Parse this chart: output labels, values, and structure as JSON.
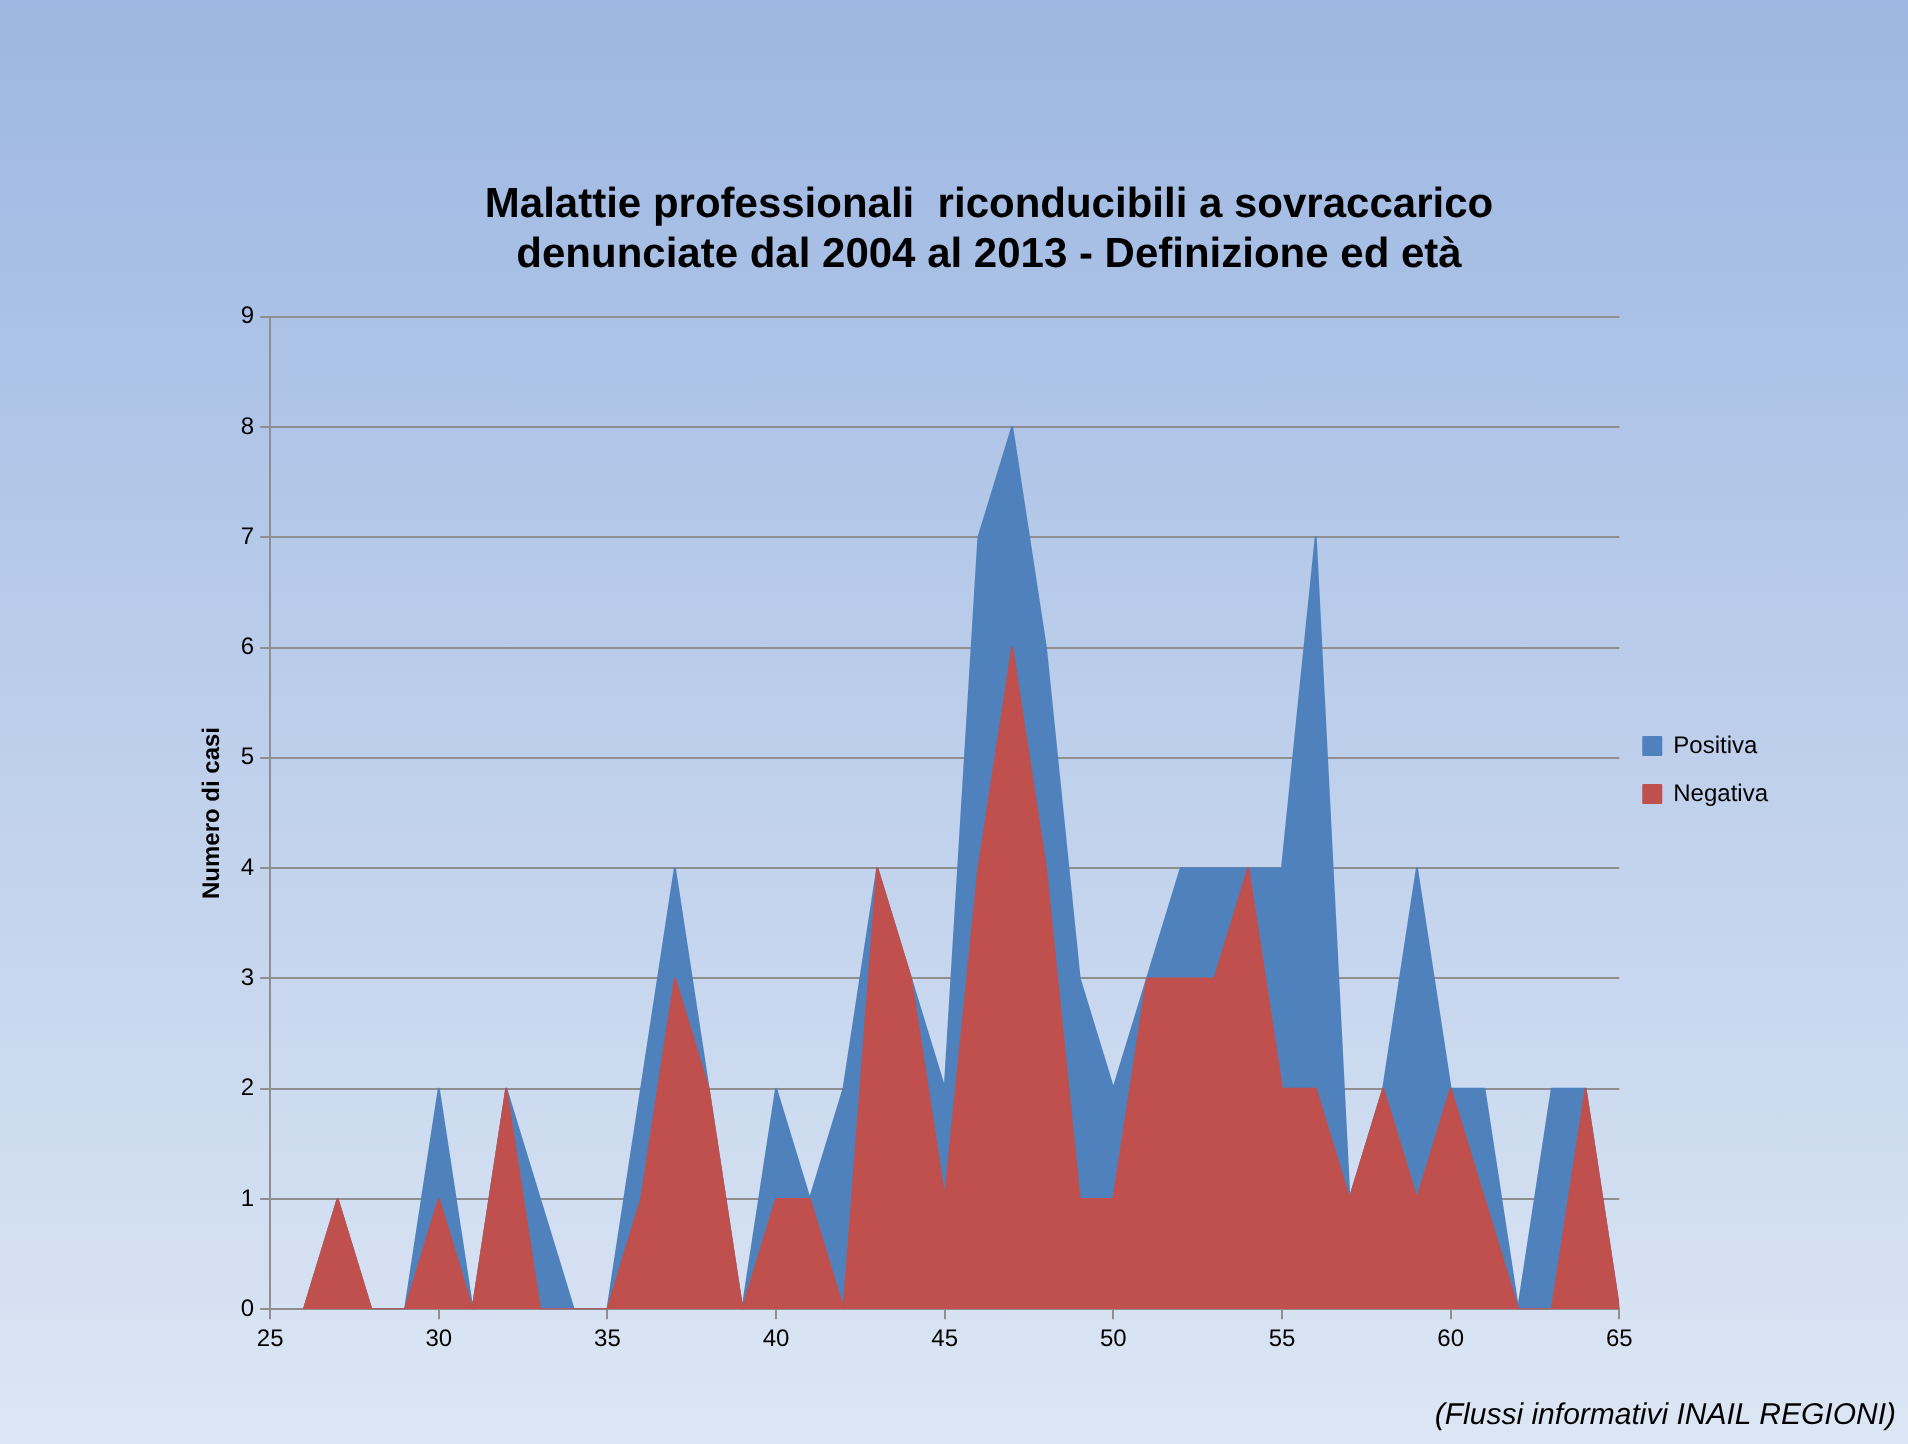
{
  "chart_data": {
    "type": "area",
    "stacked": true,
    "title": "Malattie professionali  riconducibili a sovraccarico\ndenunciate dal 2004 al 2013 - Definizione ed età",
    "ylabel": "Numero di casi",
    "x": [
      26,
      27,
      28,
      29,
      30,
      31,
      32,
      33,
      34,
      35,
      36,
      37,
      38,
      39,
      40,
      41,
      42,
      43,
      44,
      45,
      46,
      47,
      48,
      49,
      50,
      51,
      52,
      53,
      54,
      55,
      56,
      57,
      58,
      59,
      60,
      61,
      62,
      63,
      64,
      65
    ],
    "series": [
      {
        "name": "Negativa",
        "color": "#c0504d",
        "values": [
          0,
          1,
          0,
          0,
          1,
          0,
          2,
          0,
          0,
          0,
          1,
          3,
          2,
          0,
          1,
          1,
          0,
          4,
          3,
          1,
          4,
          6,
          4,
          1,
          1,
          3,
          3,
          3,
          4,
          2,
          2,
          1,
          2,
          1,
          2,
          1,
          0,
          0,
          2,
          0
        ]
      },
      {
        "name": "Positiva",
        "color": "#4f81bd",
        "values": [
          0,
          0,
          0,
          0,
          1,
          0,
          0,
          1,
          0,
          0,
          1,
          1,
          0,
          0,
          1,
          0,
          2,
          0,
          0,
          1,
          3,
          2,
          2,
          2,
          1,
          0,
          1,
          1,
          0,
          2,
          5,
          0,
          0,
          3,
          0,
          1,
          0,
          2,
          0,
          0
        ]
      }
    ],
    "xlim": [
      25,
      65
    ],
    "xticks": [
      25,
      30,
      35,
      40,
      45,
      50,
      55,
      60,
      65
    ],
    "ylim": [
      0,
      9
    ],
    "yticks": [
      0,
      1,
      2,
      3,
      4,
      5,
      6,
      7,
      8,
      9
    ],
    "grid": "y",
    "legend": "right",
    "marker": "none",
    "annotations": [
      "(Flussi informativi INAIL REGIONI)"
    ]
  }
}
